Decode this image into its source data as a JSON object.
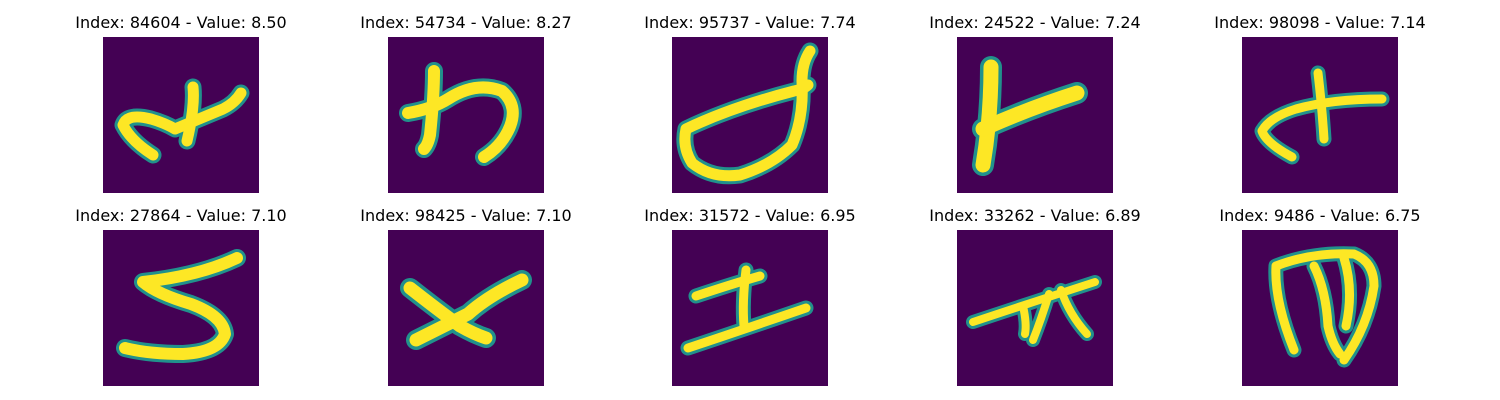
{
  "figure": {
    "background": "#ffffff",
    "colormap": {
      "background": "#440154",
      "mid": "#21918c",
      "high": "#fde725"
    },
    "panels": [
      {
        "title": "Index: 84604 - Value: 8.50",
        "index": "84604",
        "value": "8.50"
      },
      {
        "title": "Index: 54734 - Value: 8.27",
        "index": "54734",
        "value": "8.27"
      },
      {
        "title": "Index: 95737 - Value: 7.74",
        "index": "95737",
        "value": "7.74"
      },
      {
        "title": "Index: 24522 - Value: 7.24",
        "index": "24522",
        "value": "7.24"
      },
      {
        "title": "Index: 98098 - Value: 7.14",
        "index": "98098",
        "value": "7.14"
      },
      {
        "title": "Index: 27864 - Value: 7.10",
        "index": "27864",
        "value": "7.10"
      },
      {
        "title": "Index: 98425 - Value: 7.10",
        "index": "98425",
        "value": "7.10"
      },
      {
        "title": "Index: 31572 - Value: 6.95",
        "index": "31572",
        "value": "6.95"
      },
      {
        "title": "Index: 33262 - Value: 6.89",
        "index": "33262",
        "value": "6.89"
      },
      {
        "title": "Index: 9486 - Value: 6.75",
        "index": "9486",
        "value": "6.75"
      }
    ]
  }
}
